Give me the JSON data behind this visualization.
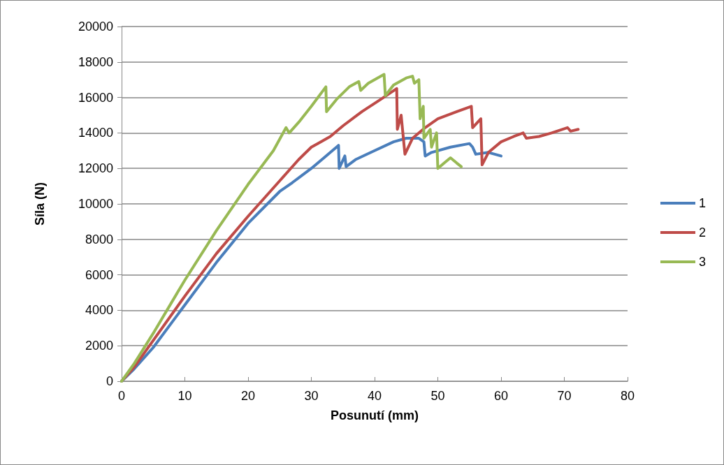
{
  "chart_data": {
    "type": "line",
    "xlabel": "Posunutí (mm)",
    "ylabel": "Síla (N)",
    "xlim": [
      0,
      80
    ],
    "xticks": [
      0,
      10,
      20,
      30,
      40,
      50,
      60,
      70,
      80
    ],
    "ylim": [
      0,
      20000
    ],
    "yticks": [
      0,
      2000,
      4000,
      6000,
      8000,
      10000,
      12000,
      14000,
      16000,
      18000,
      20000
    ],
    "grid": "y",
    "legend": "right",
    "marker": "none",
    "line_style": "solid",
    "series": [
      {
        "name": "1",
        "color": "#4a7ebb",
        "x": [
          0,
          2,
          5,
          10,
          15,
          20,
          25,
          27,
          30,
          32,
          34.3,
          34.4,
          35.3,
          35.5,
          37,
          40,
          43,
          45,
          47,
          47.8,
          48,
          49,
          52,
          55,
          55.5,
          56,
          58,
          60
        ],
        "values": [
          0,
          700,
          1900,
          4300,
          6700,
          8900,
          10700,
          11200,
          12000,
          12600,
          13300,
          12000,
          12700,
          12100,
          12500,
          13000,
          13500,
          13700,
          13700,
          13500,
          12700,
          12900,
          13200,
          13400,
          13200,
          12800,
          12900,
          12700
        ]
      },
      {
        "name": "2",
        "color": "#be4b48",
        "x": [
          0,
          2,
          5,
          10,
          15,
          20,
          25,
          28,
          30,
          31,
          33,
          35,
          38,
          41,
          43.5,
          43.6,
          44.2,
          44.8,
          46,
          48,
          50,
          53,
          55.3,
          55.5,
          56.8,
          57,
          58,
          60,
          62,
          63.5,
          64,
          66,
          68,
          70.5,
          71,
          72.2
        ],
        "values": [
          0,
          800,
          2300,
          4800,
          7200,
          9300,
          11300,
          12500,
          13200,
          13400,
          13800,
          14400,
          15200,
          15900,
          16500,
          14200,
          15000,
          12800,
          13700,
          14300,
          14800,
          15200,
          15500,
          14300,
          14800,
          12200,
          12900,
          13500,
          13800,
          14000,
          13700,
          13800,
          14000,
          14300,
          14100,
          14200
        ]
      },
      {
        "name": "3",
        "color": "#98b954",
        "x": [
          0,
          2,
          5,
          10,
          15,
          20,
          24,
          26,
          26.5,
          28,
          30,
          32.3,
          32.4,
          34,
          36,
          37.5,
          37.8,
          39,
          41.5,
          41.7,
          43,
          45,
          46,
          46.3,
          47,
          47.2,
          47.7,
          47.8,
          48.8,
          49,
          49.8,
          50,
          51,
          52,
          53,
          53.7
        ],
        "values": [
          0,
          1000,
          2700,
          5700,
          8500,
          11100,
          13000,
          14300,
          14000,
          14600,
          15500,
          16600,
          15200,
          15900,
          16600,
          16900,
          16400,
          16800,
          17300,
          16100,
          16700,
          17100,
          17200,
          16800,
          17000,
          14800,
          15500,
          13700,
          14200,
          13200,
          14000,
          12000,
          12300,
          12600,
          12300,
          12100
        ]
      }
    ]
  }
}
